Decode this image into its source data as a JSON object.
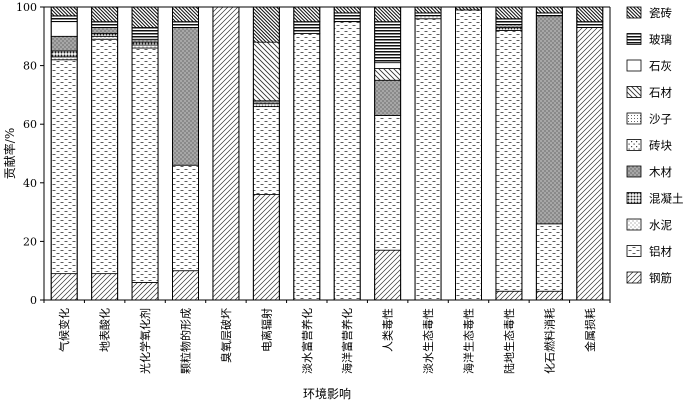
{
  "chart_data": {
    "type": "bar",
    "stacked": true,
    "ylabel": "贡献率/%",
    "xlabel": "环境影响",
    "ylim": [
      0,
      100
    ],
    "yticks": [
      0,
      20,
      40,
      60,
      80,
      100
    ],
    "legend_position": "right",
    "categories": [
      "气候变化",
      "地表酸化",
      "光化学氧化剂",
      "颗粒物的形成",
      "臭氧层破坏",
      "电离辐射",
      "淡水富营养化",
      "海洋富营养化",
      "人类毒性",
      "淡水生态毒性",
      "海洋生态毒性",
      "陆地生态毒性",
      "化石燃料消耗",
      "金属损耗"
    ],
    "series": [
      {
        "name": "钢筋",
        "pattern": "diag-fwd",
        "values": [
          9,
          9,
          6,
          10,
          100,
          36,
          0,
          0,
          17,
          0,
          0,
          3,
          3,
          93
        ]
      },
      {
        "name": "铝材",
        "pattern": "dash",
        "values": [
          73,
          80,
          80,
          36,
          0,
          30,
          91,
          95,
          46,
          96,
          99,
          89,
          23,
          0
        ]
      },
      {
        "name": "水泥",
        "pattern": "light-dots",
        "values": [
          1,
          1,
          1,
          0,
          0,
          0,
          0,
          0,
          0,
          1,
          0,
          0,
          0,
          0
        ]
      },
      {
        "name": "混凝土",
        "pattern": "dense-dots",
        "values": [
          2,
          1,
          1,
          0,
          0,
          1,
          0,
          0,
          0,
          0,
          0,
          1,
          0,
          0
        ]
      },
      {
        "name": "木材",
        "pattern": "dark-dots",
        "values": [
          5,
          2,
          1,
          47,
          0,
          1,
          0,
          0,
          12,
          0,
          0,
          1,
          71,
          0
        ]
      },
      {
        "name": "砖块",
        "pattern": "sparse-dots",
        "values": [
          0,
          0,
          0,
          0,
          0,
          0,
          0,
          0,
          0,
          0,
          0,
          0,
          0,
          0
        ]
      },
      {
        "name": "沙子",
        "pattern": "small-dots",
        "values": [
          0,
          0,
          0,
          0,
          0,
          0,
          0,
          0,
          0,
          0,
          0,
          0,
          0,
          0
        ]
      },
      {
        "name": "石材",
        "pattern": "diag-back",
        "values": [
          0,
          0,
          0,
          0,
          0,
          20,
          0,
          0,
          4,
          0,
          0,
          0,
          0,
          0
        ]
      },
      {
        "name": "石灰",
        "pattern": "white",
        "values": [
          5,
          0,
          0,
          0,
          0,
          0,
          0,
          0,
          2,
          0,
          0,
          0,
          0,
          0
        ]
      },
      {
        "name": "玻璃",
        "pattern": "hstripe",
        "values": [
          2,
          2,
          4,
          2,
          0,
          0,
          4,
          3,
          14,
          1,
          0,
          2,
          1,
          2
        ]
      },
      {
        "name": "瓷砖",
        "pattern": "diag-back-dense",
        "values": [
          3,
          5,
          7,
          5,
          0,
          12,
          5,
          2,
          5,
          2,
          1,
          4,
          2,
          5
        ]
      }
    ]
  }
}
